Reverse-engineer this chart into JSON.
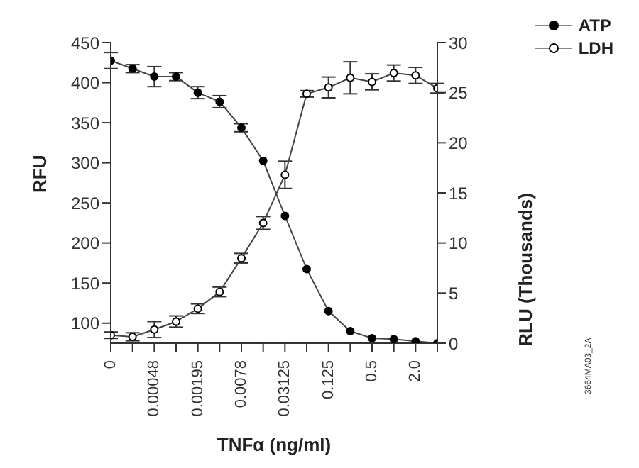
{
  "chart_data": {
    "type": "line",
    "xlabel": "TNFα (ng/ml)",
    "ylabel": "RFU",
    "y2label": "RLU (Thousands)",
    "categories": [
      "0",
      null,
      "0.00048",
      null,
      "0.00195",
      null,
      "0.0078",
      null,
      "0.03125",
      null,
      "0.125",
      null,
      "0.5",
      null,
      "2.0",
      null
    ],
    "series": [
      {
        "name": "ATP",
        "color": "#000000",
        "axis": "y2",
        "values": [
          28.2,
          27.4,
          26.6,
          26.6,
          25.0,
          24.1,
          21.5,
          18.2,
          12.7,
          7.4,
          3.2,
          1.2,
          0.5,
          0.4,
          0.2,
          0
        ],
        "errors": [
          0.8,
          0.4,
          1,
          0.4,
          0.6,
          0.6,
          0.4,
          null,
          null,
          null,
          null,
          null,
          null,
          null,
          null,
          null
        ]
      },
      {
        "name": "LDH",
        "color": "#ffffff",
        "axis": "y",
        "values": [
          85,
          83,
          92,
          102,
          118,
          139,
          181,
          225,
          285,
          386,
          394,
          406,
          401,
          412,
          409,
          393
        ],
        "errors": [
          4,
          5,
          10,
          7,
          6,
          6,
          6,
          8,
          17,
          4,
          13,
          20,
          10,
          10,
          10,
          6
        ]
      }
    ],
    "ylim": [
      75,
      450
    ],
    "yticks": [
      100,
      150,
      200,
      250,
      300,
      350,
      400,
      450
    ],
    "y2lim": [
      0,
      30
    ],
    "y2ticks": [
      0,
      5,
      10,
      15,
      20,
      25,
      30
    ],
    "marker": "circle",
    "line_style": "solid",
    "grid": false,
    "legend": "top right",
    "annotations": [
      "3664MA03_2A"
    ]
  }
}
